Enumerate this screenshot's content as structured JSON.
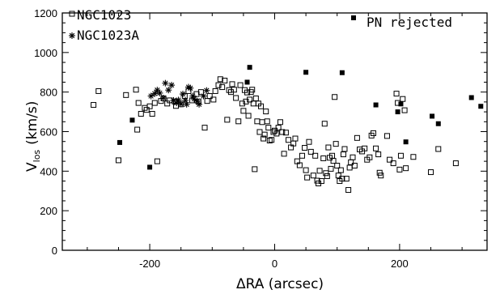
{
  "chart_data": {
    "type": "scatter",
    "xlabel": "ΔRA (arcsec)",
    "ylabel_main": "V",
    "ylabel_sub": "los",
    "ylabel_unit": "(km/s)",
    "xlim": [
      -340,
      340
    ],
    "ylim": [
      0,
      1200
    ],
    "xticks": [
      -200,
      0,
      200
    ],
    "xtick_labels": [
      "-200",
      "0",
      "200"
    ],
    "yticks": [
      0,
      200,
      400,
      600,
      800,
      1000,
      1200
    ],
    "ytick_labels": [
      "0",
      "200",
      "400",
      "600",
      "800",
      "1000",
      "1200"
    ],
    "legend": {
      "ngc1023": "NGC1023",
      "ngc1023a": "NGC1023A",
      "rejected": "PN rejected"
    },
    "series": [
      {
        "name": "NGC1023",
        "marker": "open-square",
        "points": [
          [
            -290,
            735
          ],
          [
            -282,
            805
          ],
          [
            -250,
            455
          ],
          [
            -238,
            785
          ],
          [
            -222,
            812
          ],
          [
            -220,
            610
          ],
          [
            -218,
            745
          ],
          [
            -214,
            690
          ],
          [
            -208,
            720
          ],
          [
            -205,
            710
          ],
          [
            -200,
            728
          ],
          [
            -196,
            690
          ],
          [
            -192,
            745
          ],
          [
            -188,
            450
          ],
          [
            -182,
            755
          ],
          [
            -178,
            768
          ],
          [
            -172,
            742
          ],
          [
            -168,
            758
          ],
          [
            -160,
            752
          ],
          [
            -158,
            730
          ],
          [
            -150,
            738
          ],
          [
            -144,
            780
          ],
          [
            -138,
            805
          ],
          [
            -132,
            758
          ],
          [
            -125,
            790
          ],
          [
            -122,
            752
          ],
          [
            -118,
            800
          ],
          [
            -112,
            620
          ],
          [
            -108,
            755
          ],
          [
            -104,
            780
          ],
          [
            -98,
            762
          ],
          [
            -95,
            805
          ],
          [
            -90,
            835
          ],
          [
            -87,
            865
          ],
          [
            -84,
            825
          ],
          [
            -80,
            858
          ],
          [
            -76,
            660
          ],
          [
            -73,
            810
          ],
          [
            -70,
            800
          ],
          [
            -68,
            840
          ],
          [
            -65,
            812
          ],
          [
            -62,
            770
          ],
          [
            -58,
            652
          ],
          [
            -55,
            835
          ],
          [
            -52,
            742
          ],
          [
            -50,
            705
          ],
          [
            -48,
            810
          ],
          [
            -46,
            752
          ],
          [
            -44,
            798
          ],
          [
            -42,
            680
          ],
          [
            -40,
            762
          ],
          [
            -38,
            800
          ],
          [
            -36,
            812
          ],
          [
            -34,
            742
          ],
          [
            -32,
            410
          ],
          [
            -30,
            768
          ],
          [
            -28,
            652
          ],
          [
            -26,
            742
          ],
          [
            -24,
            598
          ],
          [
            -22,
            728
          ],
          [
            -20,
            648
          ],
          [
            -18,
            565
          ],
          [
            -16,
            585
          ],
          [
            -14,
            702
          ],
          [
            -12,
            652
          ],
          [
            -10,
            620
          ],
          [
            -8,
            555
          ],
          [
            -5,
            558
          ],
          [
            -2,
            598
          ],
          [
            0,
            605
          ],
          [
            3,
            590
          ],
          [
            6,
            620
          ],
          [
            9,
            648
          ],
          [
            12,
            598
          ],
          [
            15,
            488
          ],
          [
            18,
            595
          ],
          [
            22,
            558
          ],
          [
            26,
            520
          ],
          [
            30,
            540
          ],
          [
            33,
            565
          ],
          [
            36,
            450
          ],
          [
            40,
            430
          ],
          [
            44,
            478
          ],
          [
            48,
            518
          ],
          [
            50,
            405
          ],
          [
            52,
            368
          ],
          [
            55,
            548
          ],
          [
            58,
            498
          ],
          [
            62,
            378
          ],
          [
            65,
            478
          ],
          [
            68,
            352
          ],
          [
            70,
            338
          ],
          [
            72,
            402
          ],
          [
            75,
            350
          ],
          [
            78,
            465
          ],
          [
            80,
            640
          ],
          [
            82,
            390
          ],
          [
            84,
            375
          ],
          [
            86,
            520
          ],
          [
            88,
            468
          ],
          [
            90,
            412
          ],
          [
            92,
            478
          ],
          [
            94,
            452
          ],
          [
            96,
            775
          ],
          [
            98,
            538
          ],
          [
            100,
            428
          ],
          [
            102,
            378
          ],
          [
            104,
            350
          ],
          [
            106,
            405
          ],
          [
            108,
            362
          ],
          [
            110,
            485
          ],
          [
            112,
            512
          ],
          [
            115,
            362
          ],
          [
            118,
            305
          ],
          [
            120,
            418
          ],
          [
            122,
            445
          ],
          [
            125,
            470
          ],
          [
            128,
            428
          ],
          [
            132,
            568
          ],
          [
            136,
            510
          ],
          [
            140,
            500
          ],
          [
            144,
            515
          ],
          [
            148,
            458
          ],
          [
            152,
            470
          ],
          [
            155,
            580
          ],
          [
            158,
            592
          ],
          [
            162,
            515
          ],
          [
            166,
            485
          ],
          [
            168,
            392
          ],
          [
            170,
            378
          ],
          [
            180,
            578
          ],
          [
            184,
            458
          ],
          [
            190,
            440
          ],
          [
            195,
            792
          ],
          [
            197,
            745
          ],
          [
            200,
            408
          ],
          [
            202,
            478
          ],
          [
            205,
            765
          ],
          [
            208,
            708
          ],
          [
            210,
            415
          ],
          [
            222,
            472
          ],
          [
            250,
            395
          ],
          [
            262,
            512
          ],
          [
            290,
            440
          ]
        ]
      },
      {
        "name": "NGC1023A",
        "marker": "asterisk",
        "points": [
          [
            -198,
            780
          ],
          [
            -192,
            792
          ],
          [
            -188,
            810
          ],
          [
            -184,
            795
          ],
          [
            -178,
            770
          ],
          [
            -175,
            845
          ],
          [
            -170,
            810
          ],
          [
            -165,
            835
          ],
          [
            -162,
            758
          ],
          [
            -157,
            745
          ],
          [
            -154,
            760
          ],
          [
            -150,
            740
          ],
          [
            -147,
            790
          ],
          [
            -143,
            758
          ],
          [
            -141,
            738
          ],
          [
            -138,
            825
          ],
          [
            -135,
            820
          ],
          [
            -131,
            780
          ],
          [
            -129,
            765
          ],
          [
            -124,
            755
          ],
          [
            -121,
            738
          ],
          [
            -114,
            780
          ],
          [
            -109,
            808
          ]
        ]
      },
      {
        "name": "PN rejected",
        "marker": "filled-square",
        "points": [
          [
            -248,
            545
          ],
          [
            -228,
            658
          ],
          [
            -200,
            420
          ],
          [
            -40,
            925
          ],
          [
            -44,
            850
          ],
          [
            50,
            900
          ],
          [
            108,
            898
          ],
          [
            162,
            735
          ],
          [
            197,
            700
          ],
          [
            202,
            740
          ],
          [
            210,
            548
          ],
          [
            252,
            678
          ],
          [
            262,
            640
          ],
          [
            315,
            772
          ],
          [
            330,
            728
          ]
        ]
      }
    ]
  }
}
